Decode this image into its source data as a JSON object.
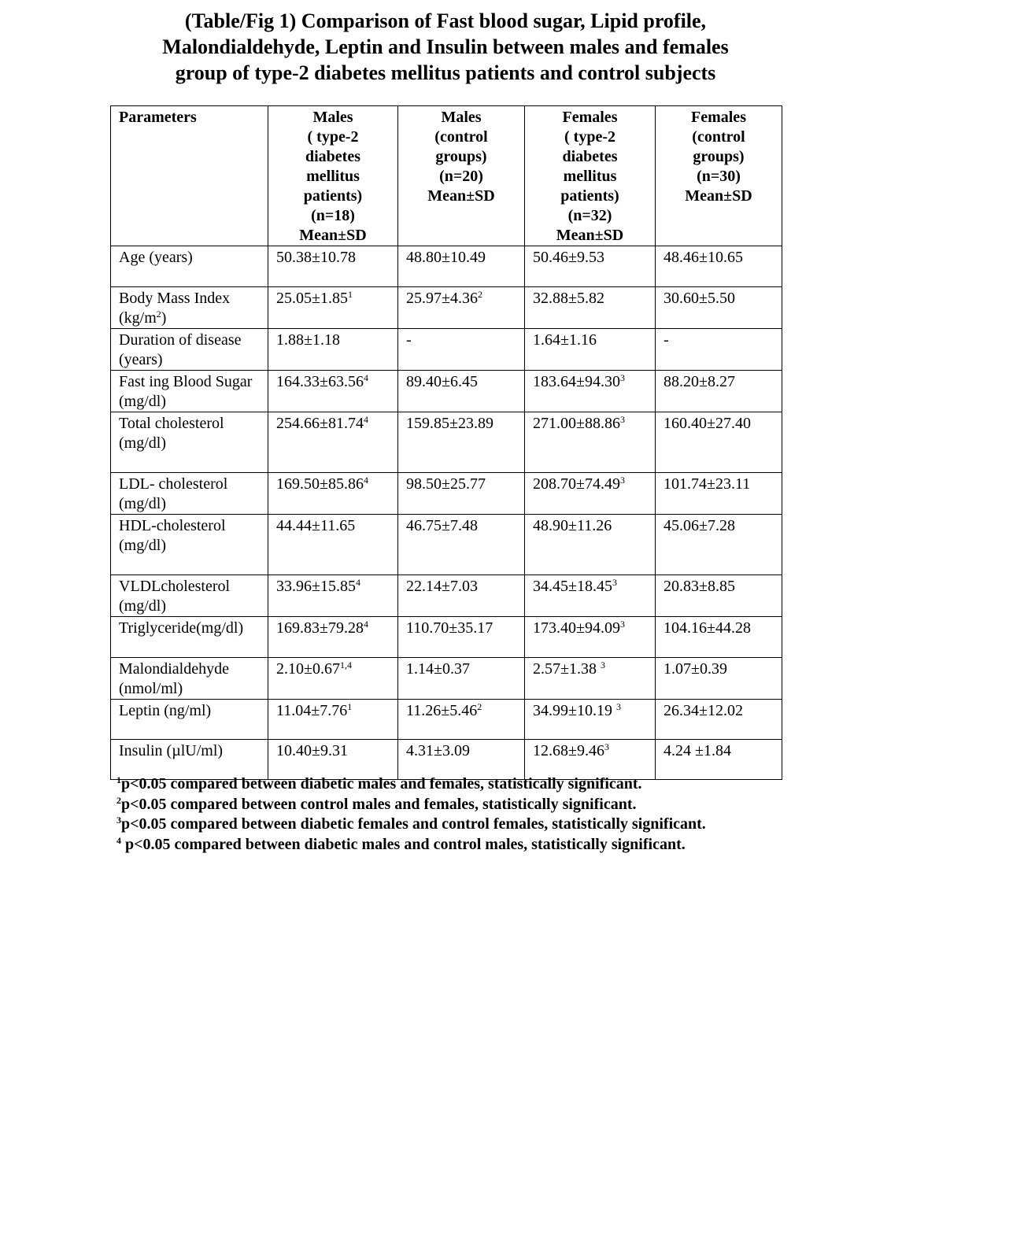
{
  "title": "(Table/Fig 1) Comparison of Fast blood sugar, Lipid profile,\nMalondialdehyde, Leptin and Insulin between males and females\ngroup of type-2 diabetes mellitus patients and control subjects",
  "headers": [
    "Parameters",
    "Males\n( type-2\ndiabetes\nmellitus\npatients)\n(n=18)\nMean±SD",
    "Males\n(control\ngroups)\n(n=20)\nMean±SD",
    "Females\n( type-2\ndiabetes\nmellitus\npatients)\n(n=32)\nMean±SD",
    "Females\n(control\ngroups)\n(n=30)\nMean±SD"
  ],
  "rows": [
    {
      "param": {
        "pre": "Age (years)"
      },
      "cells": [
        {
          "v": "50.38±10.78"
        },
        {
          "v": "48.80±10.49"
        },
        {
          "v": "50.46±9.53"
        },
        {
          "v": "48.46±10.65"
        }
      ]
    },
    {
      "param": {
        "pre": "Body Mass Index (kg/m",
        "sup": "2",
        "post": ")"
      },
      "cells": [
        {
          "v": "25.05±1.85",
          "sup": "1"
        },
        {
          "v": "25.97±4.36",
          "sup": "2"
        },
        {
          "v": "32.88±5.82"
        },
        {
          "v": "30.60±5.50"
        }
      ]
    },
    {
      "param": {
        "pre": "Duration of disease (years)"
      },
      "cells": [
        {
          "v": "1.88±1.18"
        },
        {
          "v": "-"
        },
        {
          "v": "1.64±1.16"
        },
        {
          "v": "-"
        }
      ]
    },
    {
      "param": {
        "pre": "Fast ing Blood Sugar (mg/dl)"
      },
      "cells": [
        {
          "v": "164.33±63.56",
          "sup": "4"
        },
        {
          "v": "89.40±6.45"
        },
        {
          "v": "183.64±94.30",
          "sup": "3"
        },
        {
          "v": "88.20±8.27"
        }
      ]
    },
    {
      "param": {
        "pre": "Total cholesterol (mg/dl)"
      },
      "cells": [
        {
          "v": "254.66±81.74",
          "sup": "4"
        },
        {
          "v": "159.85±23.89"
        },
        {
          "v": "271.00±88.86",
          "sup": "3"
        },
        {
          "v": "160.40±27.40"
        }
      ]
    },
    {
      "param": {
        "pre": "LDL- cholesterol (mg/dl)"
      },
      "cells": [
        {
          "v": "169.50±85.86",
          "sup": "4"
        },
        {
          "v": "98.50±25.77"
        },
        {
          "v": "208.70±74.49",
          "sup": "3"
        },
        {
          "v": "101.74±23.11"
        }
      ]
    },
    {
      "param": {
        "pre": "HDL-cholesterol (mg/dl)"
      },
      "cells": [
        {
          "v": "44.44±11.65"
        },
        {
          "v": "46.75±7.48"
        },
        {
          "v": "48.90±11.26"
        },
        {
          "v": "45.06±7.28"
        }
      ]
    },
    {
      "param": {
        "pre": "VLDLcholesterol (mg/dl)"
      },
      "cells": [
        {
          "v": "33.96±15.85",
          "sup": "4"
        },
        {
          "v": "22.14±7.03"
        },
        {
          "v": "34.45±18.45",
          "sup": "3"
        },
        {
          "v": "20.83±8.85"
        }
      ]
    },
    {
      "param": {
        "pre": "Triglyceride(mg/dl)"
      },
      "cells": [
        {
          "v": "169.83±79.28",
          "sup": "4"
        },
        {
          "v": "110.70±35.17"
        },
        {
          "v": "173.40±94.09",
          "sup": "3"
        },
        {
          "v": "104.16±44.28"
        }
      ]
    },
    {
      "param": {
        "pre": "Malondialdehyde (nmol/ml)"
      },
      "cells": [
        {
          "v": "2.10±0.67",
          "sup": "1,4"
        },
        {
          "v": "1.14±0.37"
        },
        {
          "v": "2.57±1.38 ",
          "sup": "3"
        },
        {
          "v": "1.07±0.39"
        }
      ]
    },
    {
      "param": {
        "pre": "Leptin (ng/ml)"
      },
      "cells": [
        {
          "v": "11.04±7.76",
          "sup": "1"
        },
        {
          "v": "11.26±5.46",
          "sup": "2"
        },
        {
          "v": "34.99±10.19 ",
          "sup": "3"
        },
        {
          "v": "26.34±12.02"
        }
      ]
    },
    {
      "param": {
        "pre": "Insulin (µlU/ml)"
      },
      "cells": [
        {
          "v": "10.40±9.31"
        },
        {
          "v": "4.31±3.09"
        },
        {
          "v": "12.68±9.46",
          "sup": "3"
        },
        {
          "v": "4.24 ±1.84"
        }
      ]
    }
  ],
  "footnotes": [
    {
      "mark": "1",
      "text": "p<0.05 compared between diabetic males and females, statistically significant."
    },
    {
      "mark": "2",
      "text": "p<0.05 compared between control males and females, statistically significant."
    },
    {
      "mark": "3",
      "text": "p<0.05 compared between diabetic females and control females, statistically significant."
    },
    {
      "mark": "4",
      "text": " p<0.05 compared between diabetic males and control males, statistically significant."
    }
  ]
}
